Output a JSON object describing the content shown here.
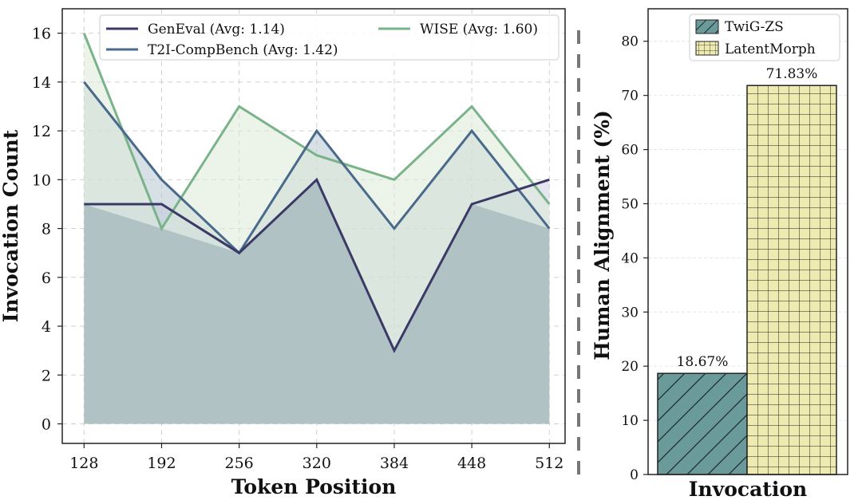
{
  "chart_data": [
    {
      "type": "area",
      "xlabel": "Token Position",
      "ylabel": "Invocation Count",
      "x": [
        128,
        192,
        256,
        320,
        384,
        448,
        512
      ],
      "xlim": [
        110,
        525
      ],
      "ylim": [
        -0.8,
        17
      ],
      "yticks": [
        0,
        2,
        4,
        6,
        8,
        10,
        12,
        14,
        16
      ],
      "grid": true,
      "legend_position": "top",
      "series": [
        {
          "name": "GenEval (Avg: 1.14)",
          "values": [
            9,
            9,
            7,
            10,
            3,
            9,
            10
          ],
          "color": "#3b3a66",
          "fill": "#cfcde6"
        },
        {
          "name": "T2I-CompBench (Avg: 1.42)",
          "values": [
            14,
            10,
            7,
            12,
            8,
            12,
            8
          ],
          "color": "#4a6a8c",
          "fill": "#b7c6cf"
        },
        {
          "name": "WISE (Avg: 1.60)",
          "values": [
            16,
            8,
            13,
            11,
            10,
            13,
            9
          ],
          "color": "#7ab38a",
          "fill": "#dcebd8"
        }
      ],
      "overlap_fill": "#a9bcbf"
    },
    {
      "type": "bar",
      "categories": [
        "TwiG-ZS",
        "LatentMorph"
      ],
      "values": [
        18.67,
        71.83
      ],
      "value_labels": [
        "18.67%",
        "71.83%"
      ],
      "colors": [
        "#6a9a9a",
        "#eeeab0"
      ],
      "hatches": [
        "diagonal",
        "grid"
      ],
      "xlabel": "Invocation",
      "ylabel": "Human Alignment (%)",
      "ylim": [
        0,
        86
      ],
      "yticks": [
        0,
        10,
        20,
        30,
        40,
        50,
        60,
        70,
        80
      ],
      "grid": true,
      "legend_position": "top-right"
    }
  ]
}
